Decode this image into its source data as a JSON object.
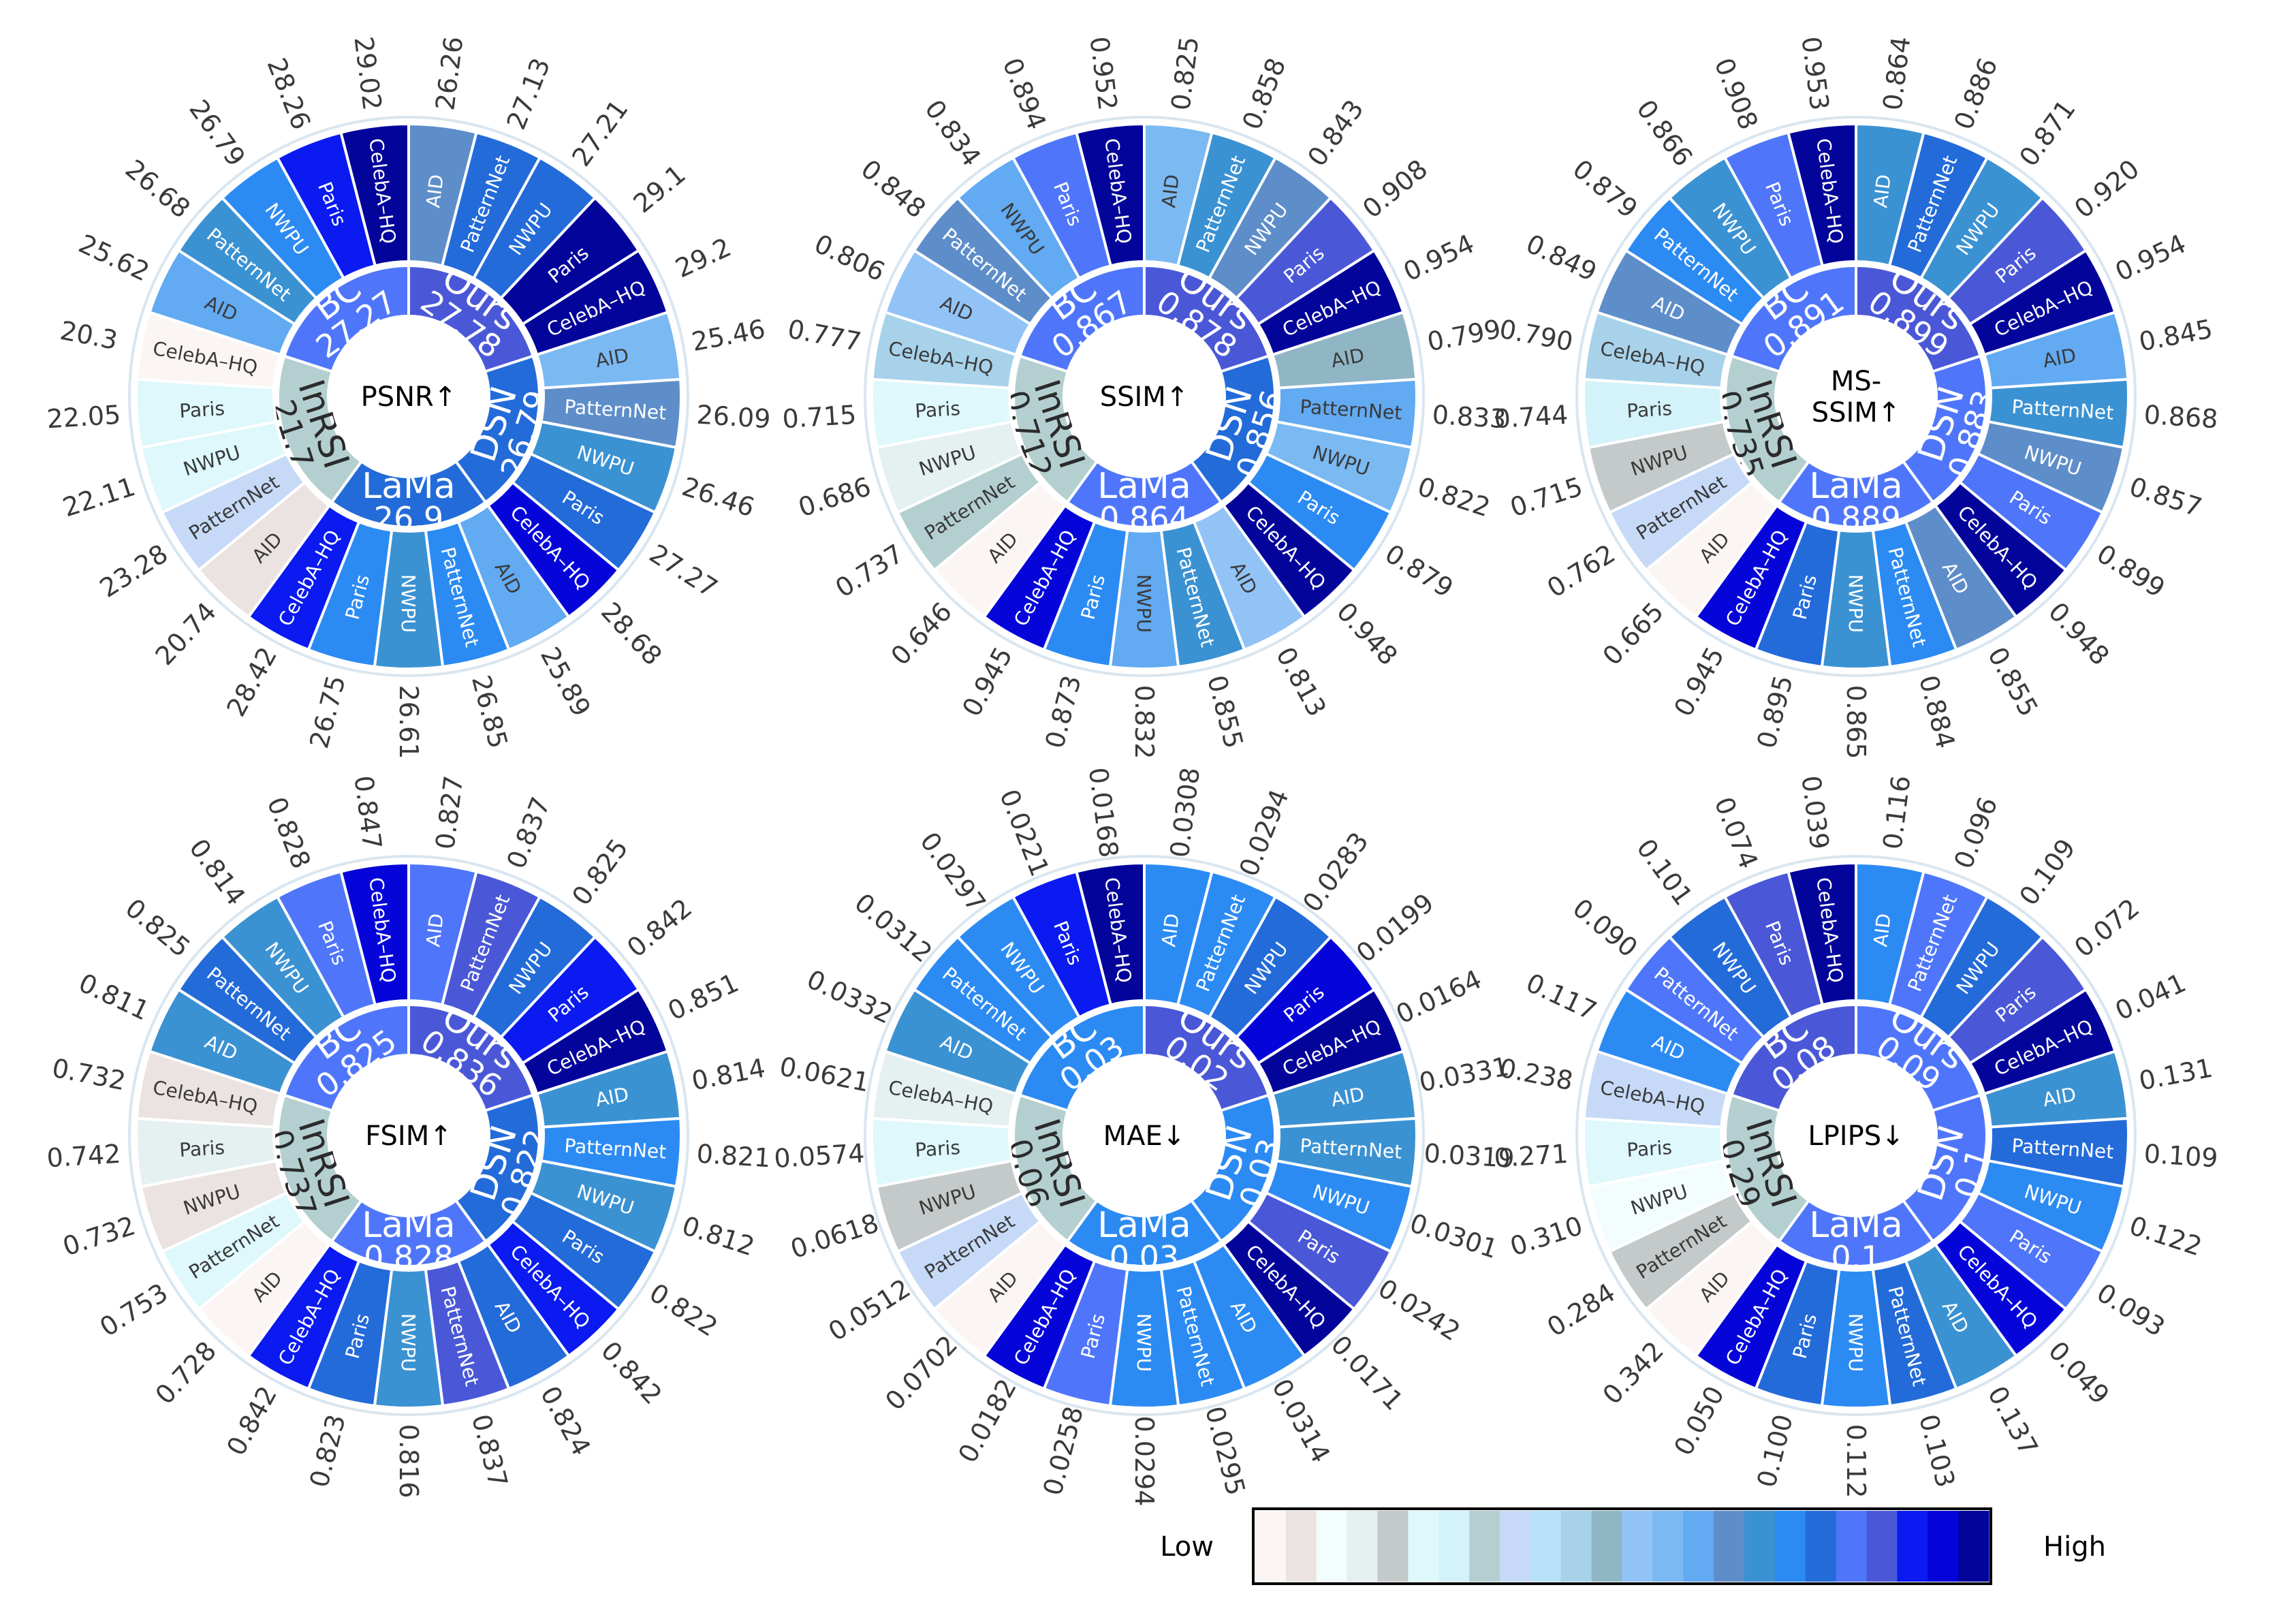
{
  "chart_data": [
    {
      "type": "radial",
      "metric": "PSNR↑",
      "methods": [
        {
          "name": "Ours",
          "mean": "27.78",
          "datasets": [
            "AID",
            "PatternNet",
            "NWPU",
            "Paris",
            "CelebA–HQ"
          ],
          "values": [
            "26.26",
            "27.13",
            "27.21",
            "29.1",
            "29.2"
          ]
        },
        {
          "name": "DSN",
          "mean": "26.79",
          "datasets": [
            "AID",
            "PatternNet",
            "NWPU",
            "Paris",
            "CelebA–HQ"
          ],
          "values": [
            "25.46",
            "26.09",
            "26.46",
            "27.27",
            "28.68"
          ]
        },
        {
          "name": "LaMa",
          "mean": "26.9",
          "datasets": [
            "AID",
            "PatternNet",
            "NWPU",
            "Paris",
            "CelebA–HQ"
          ],
          "values": [
            "25.89",
            "26.85",
            "26.61",
            "26.75",
            "28.42"
          ]
        },
        {
          "name": "InRSI",
          "mean": "21.7",
          "datasets": [
            "AID",
            "PatternNet",
            "NWPU",
            "Paris",
            "CelebA–HQ"
          ],
          "values": [
            "20.74",
            "23.28",
            "22.11",
            "22.05",
            "20.3"
          ]
        },
        {
          "name": "BC",
          "mean": "27.27",
          "datasets": [
            "AID",
            "PatternNet",
            "NWPU",
            "Paris",
            "CelebA–HQ"
          ],
          "values": [
            "25.62",
            "26.68",
            "26.79",
            "28.26",
            "29.02"
          ]
        }
      ]
    },
    {
      "type": "radial",
      "metric": "SSIM↑",
      "methods": [
        {
          "name": "Ours",
          "mean": "0.878",
          "datasets": [
            "AID",
            "PatternNet",
            "NWPU",
            "Paris",
            "CelebA–HQ"
          ],
          "values": [
            "0.825",
            "0.858",
            "0.843",
            "0.908",
            "0.954"
          ]
        },
        {
          "name": "DSN",
          "mean": "0.856",
          "datasets": [
            "AID",
            "PatternNet",
            "NWPU",
            "Paris",
            "CelebA–HQ"
          ],
          "values": [
            "0.799",
            "0.833",
            "0.822",
            "0.879",
            "0.948"
          ]
        },
        {
          "name": "LaMa",
          "mean": "0.864",
          "datasets": [
            "AID",
            "PatternNet",
            "NWPU",
            "Paris",
            "CelebA–HQ"
          ],
          "values": [
            "0.813",
            "0.855",
            "0.832",
            "0.873",
            "0.945"
          ]
        },
        {
          "name": "InRSI",
          "mean": "0.712",
          "datasets": [
            "AID",
            "PatternNet",
            "NWPU",
            "Paris",
            "CelebA–HQ"
          ],
          "values": [
            "0.646",
            "0.737",
            "0.686",
            "0.715",
            "0.777"
          ]
        },
        {
          "name": "BC",
          "mean": "0.867",
          "datasets": [
            "AID",
            "PatternNet",
            "NWPU",
            "Paris",
            "CelebA–HQ"
          ],
          "values": [
            "0.806",
            "0.848",
            "0.834",
            "0.894",
            "0.952"
          ]
        }
      ]
    },
    {
      "type": "radial",
      "metric": "MS-\nSSIM↑",
      "methods": [
        {
          "name": "Ours",
          "mean": "0.899",
          "datasets": [
            "AID",
            "PatternNet",
            "NWPU",
            "Paris",
            "CelebA–HQ"
          ],
          "values": [
            "0.864",
            "0.886",
            "0.871",
            "0.920",
            "0.954"
          ]
        },
        {
          "name": "DSN",
          "mean": "0.883",
          "datasets": [
            "AID",
            "PatternNet",
            "NWPU",
            "Paris",
            "CelebA–HQ"
          ],
          "values": [
            "0.845",
            "0.868",
            "0.857",
            "0.899",
            "0.948"
          ]
        },
        {
          "name": "LaMa",
          "mean": "0.889",
          "datasets": [
            "AID",
            "PatternNet",
            "NWPU",
            "Paris",
            "CelebA–HQ"
          ],
          "values": [
            "0.855",
            "0.884",
            "0.865",
            "0.895",
            "0.945"
          ]
        },
        {
          "name": "InRSI",
          "mean": "0.735",
          "datasets": [
            "AID",
            "PatternNet",
            "NWPU",
            "Paris",
            "CelebA–HQ"
          ],
          "values": [
            "0.665",
            "0.762",
            "0.715",
            "0.744",
            "0.790"
          ]
        },
        {
          "name": "BC",
          "mean": "0.891",
          "datasets": [
            "AID",
            "PatternNet",
            "NWPU",
            "Paris",
            "CelebA–HQ"
          ],
          "values": [
            "0.849",
            "0.879",
            "0.866",
            "0.908",
            "0.953"
          ]
        }
      ]
    },
    {
      "type": "radial",
      "metric": "FSIM↑",
      "methods": [
        {
          "name": "Ours",
          "mean": "0.836",
          "datasets": [
            "AID",
            "PatternNet",
            "NWPU",
            "Paris",
            "CelebA–HQ"
          ],
          "values": [
            "0.827",
            "0.837",
            "0.825",
            "0.842",
            "0.851"
          ]
        },
        {
          "name": "DSN",
          "mean": "0.822",
          "datasets": [
            "AID",
            "PatternNet",
            "NWPU",
            "Paris",
            "CelebA–HQ"
          ],
          "values": [
            "0.814",
            "0.821",
            "0.812",
            "0.822",
            "0.842"
          ]
        },
        {
          "name": "LaMa",
          "mean": "0.828",
          "datasets": [
            "AID",
            "PatternNet",
            "NWPU",
            "Paris",
            "CelebA–HQ"
          ],
          "values": [
            "0.824",
            "0.837",
            "0.816",
            "0.823",
            "0.842"
          ]
        },
        {
          "name": "InRSI",
          "mean": "0.737",
          "datasets": [
            "AID",
            "PatternNet",
            "NWPU",
            "Paris",
            "CelebA–HQ"
          ],
          "values": [
            "0.728",
            "0.753",
            "0.732",
            "0.742",
            "0.732"
          ]
        },
        {
          "name": "BC",
          "mean": "0.825",
          "datasets": [
            "AID",
            "PatternNet",
            "NWPU",
            "Paris",
            "CelebA–HQ"
          ],
          "values": [
            "0.811",
            "0.825",
            "0.814",
            "0.828",
            "0.847"
          ]
        }
      ]
    },
    {
      "type": "radial",
      "metric": "MAE↓",
      "methods": [
        {
          "name": "Ours",
          "mean": "0.02",
          "datasets": [
            "AID",
            "PatternNet",
            "NWPU",
            "Paris",
            "CelebA–HQ"
          ],
          "values": [
            "0.0308",
            "0.0294",
            "0.0283",
            "0.0199",
            "0.0164"
          ]
        },
        {
          "name": "DSN",
          "mean": "0.03",
          "datasets": [
            "AID",
            "PatternNet",
            "NWPU",
            "Paris",
            "CelebA–HQ"
          ],
          "values": [
            "0.0331",
            "0.0319",
            "0.0301",
            "0.0242",
            "0.0171"
          ]
        },
        {
          "name": "LaMa",
          "mean": "0.03",
          "datasets": [
            "AID",
            "PatternNet",
            "NWPU",
            "Paris",
            "CelebA–HQ"
          ],
          "values": [
            "0.0314",
            "0.0295",
            "0.0294",
            "0.0258",
            "0.0182"
          ]
        },
        {
          "name": "InRSI",
          "mean": "0.06",
          "datasets": [
            "AID",
            "PatternNet",
            "NWPU",
            "Paris",
            "CelebA–HQ"
          ],
          "values": [
            "0.0702",
            "0.0512",
            "0.0618",
            "0.0574",
            "0.0621"
          ]
        },
        {
          "name": "BC",
          "mean": "0.03",
          "datasets": [
            "AID",
            "PatternNet",
            "NWPU",
            "Paris",
            "CelebA–HQ"
          ],
          "values": [
            "0.0332",
            "0.0312",
            "0.0297",
            "0.0221",
            "0.0168"
          ]
        }
      ]
    },
    {
      "type": "radial",
      "metric": "LPIPS↓",
      "methods": [
        {
          "name": "Ours",
          "mean": "0.09",
          "datasets": [
            "AID",
            "PatternNet",
            "NWPU",
            "Paris",
            "CelebA–HQ"
          ],
          "values": [
            "0.116",
            "0.096",
            "0.109",
            "0.072",
            "0.041"
          ]
        },
        {
          "name": "DSN",
          "mean": "0.1",
          "datasets": [
            "AID",
            "PatternNet",
            "NWPU",
            "Paris",
            "CelebA–HQ"
          ],
          "values": [
            "0.131",
            "0.109",
            "0.122",
            "0.093",
            "0.049"
          ]
        },
        {
          "name": "LaMa",
          "mean": "0.1",
          "datasets": [
            "AID",
            "PatternNet",
            "NWPU",
            "Paris",
            "CelebA–HQ"
          ],
          "values": [
            "0.137",
            "0.103",
            "0.112",
            "0.100",
            "0.050"
          ]
        },
        {
          "name": "InRSI",
          "mean": "0.29",
          "datasets": [
            "AID",
            "PatternNet",
            "NWPU",
            "Paris",
            "CelebA–HQ"
          ],
          "values": [
            "0.342",
            "0.284",
            "0.310",
            "0.271",
            "0.238"
          ]
        },
        {
          "name": "BC",
          "mean": "0.08",
          "datasets": [
            "AID",
            "PatternNet",
            "NWPU",
            "Paris",
            "CelebA–HQ"
          ],
          "values": [
            "0.117",
            "0.090",
            "0.101",
            "0.074",
            "0.039"
          ]
        }
      ]
    }
  ],
  "legend": {
    "low_label": "Low",
    "high_label": "High",
    "colors": [
      "#fbf6f4",
      "#ebe3e1",
      "#f4fdfe",
      "#e5f0f0",
      "#c4c9ca",
      "#def8fc",
      "#d3f2f9",
      "#b4cfd0",
      "#c6daf7",
      "#b6e1f7",
      "#a7d2ea",
      "#90b6c5",
      "#92c3f6",
      "#7bb9f2",
      "#62aaf2",
      "#5e8ec9",
      "#3b92d2",
      "#2c8bf3",
      "#236bd9",
      "#4f76fa",
      "#4a58d7",
      "#0a1af0",
      "#0605d9",
      "#02049a"
    ]
  }
}
